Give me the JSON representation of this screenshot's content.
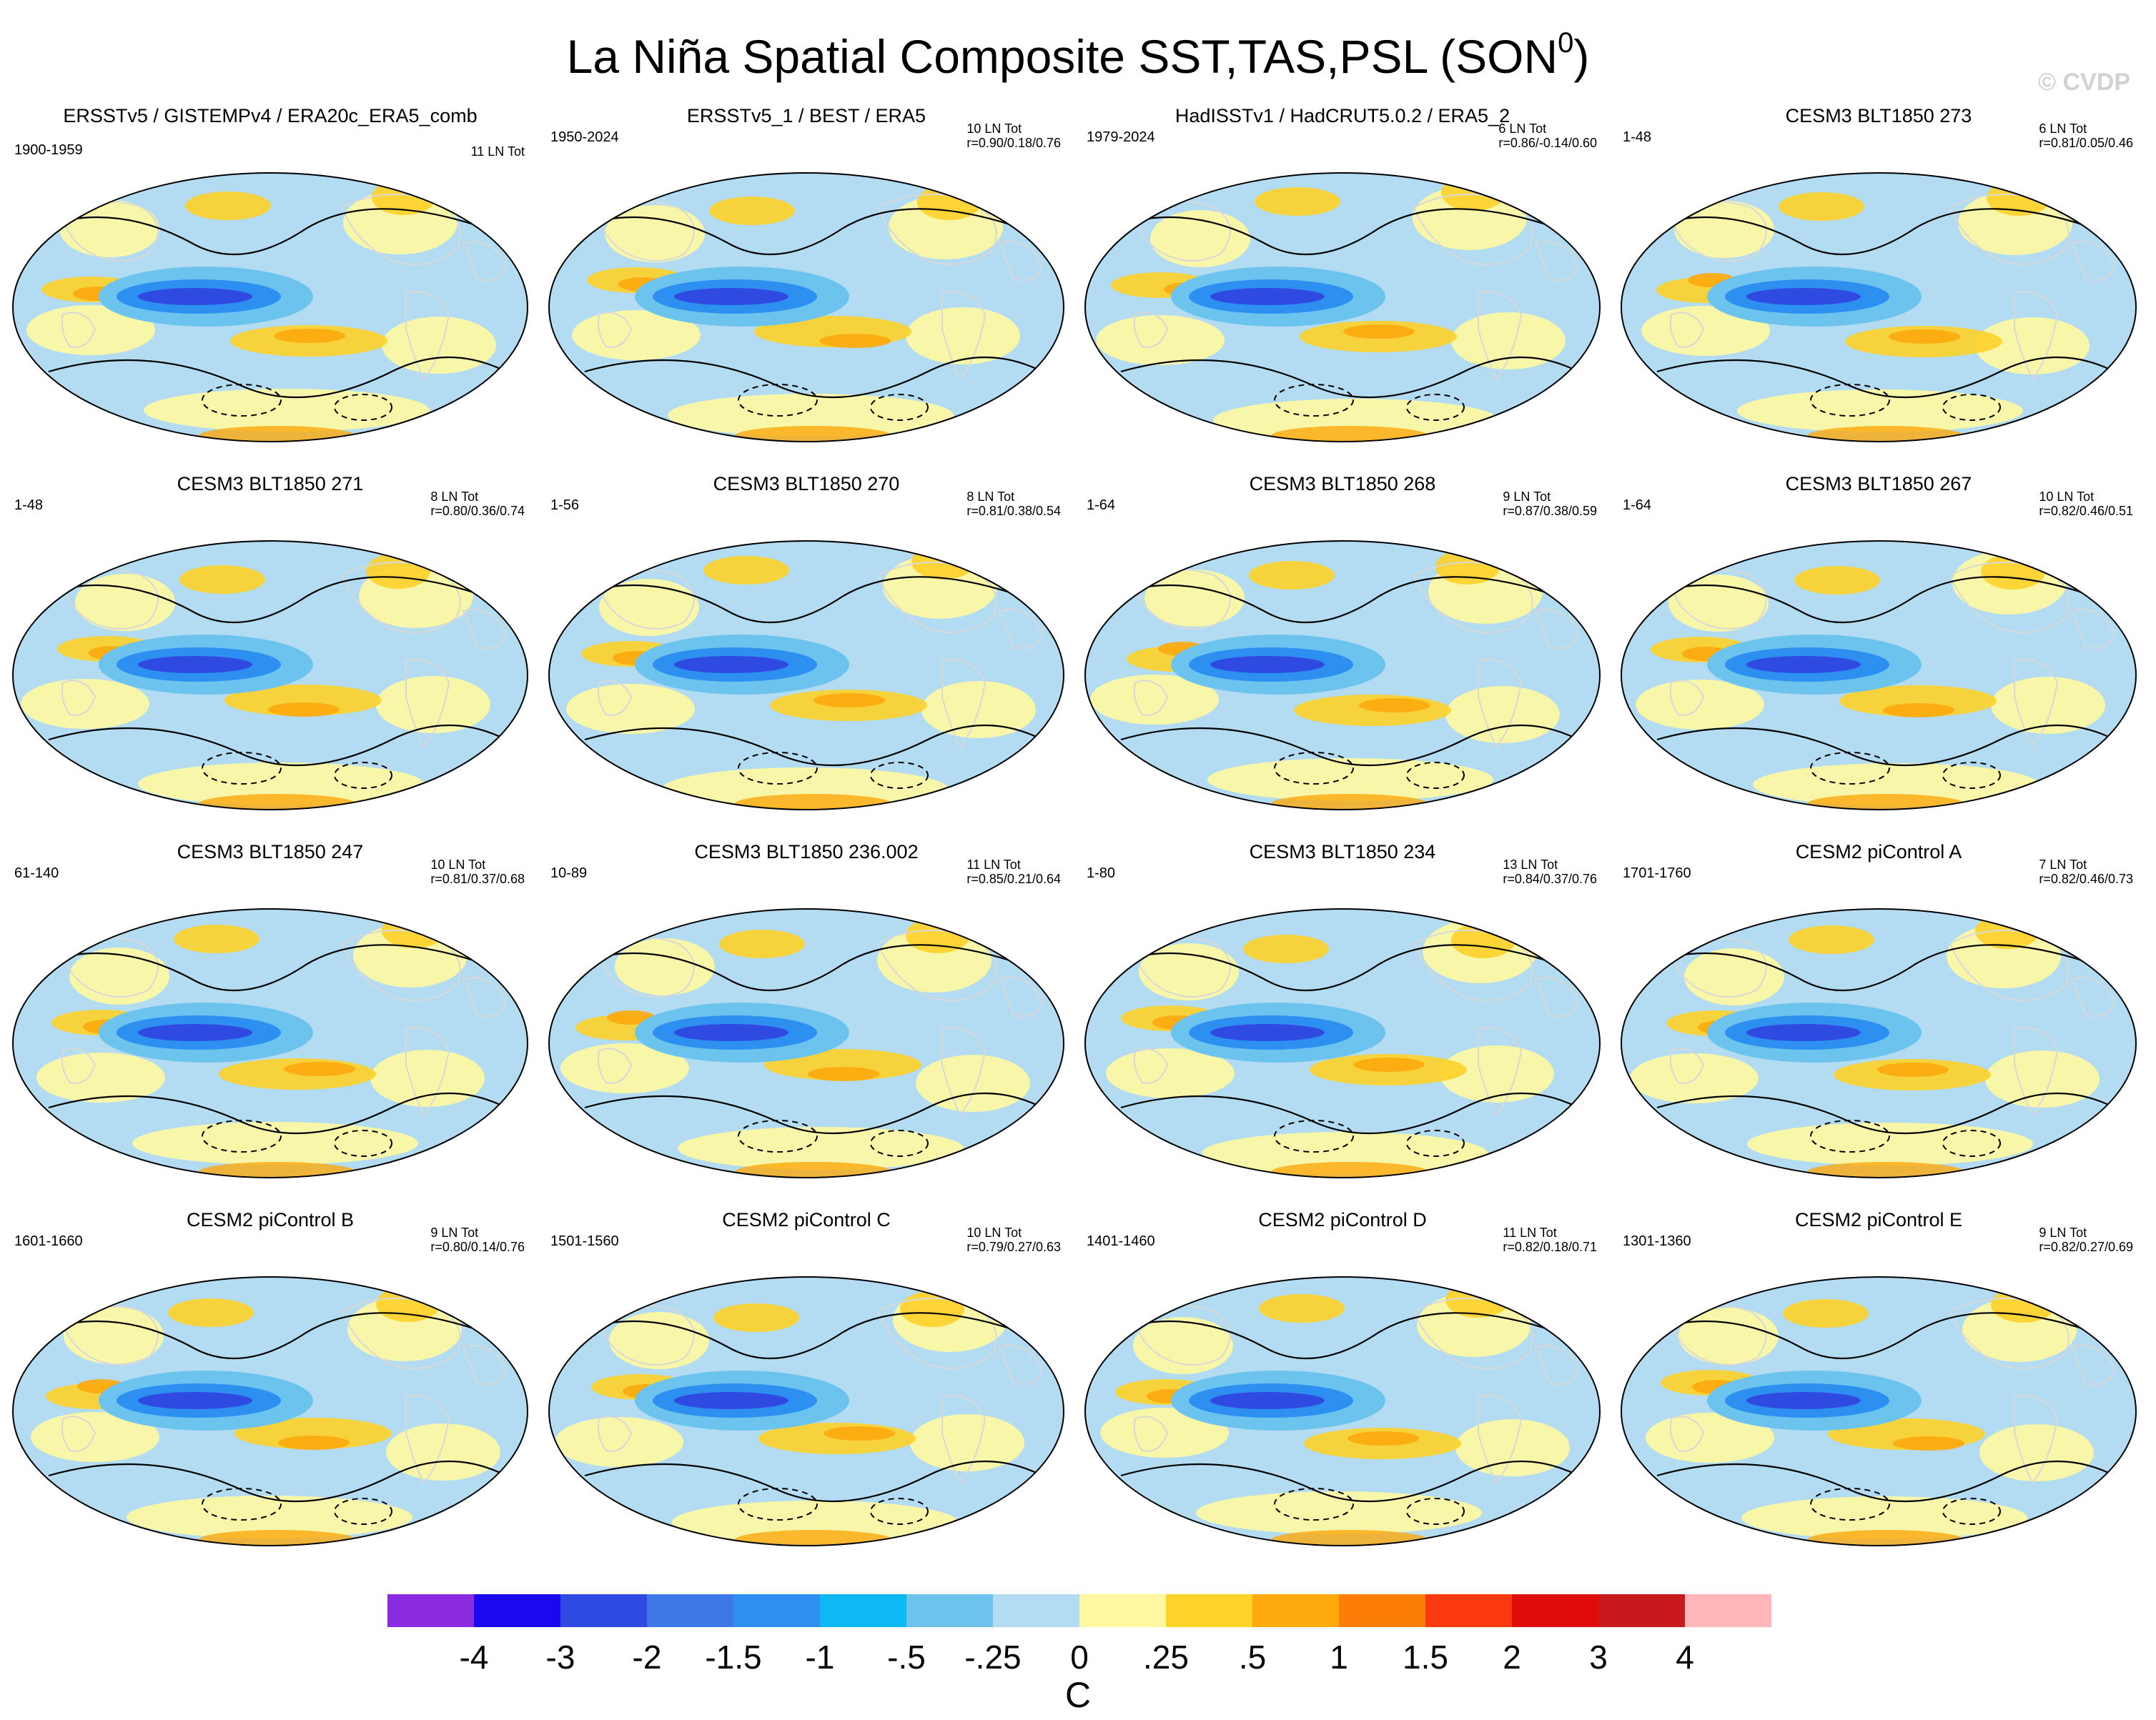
{
  "title": {
    "main": "La Niña Spatial Composite SST,TAS,PSL (SON",
    "superscript": "0",
    "close": ")"
  },
  "watermark": "© CVDP",
  "panels": [
    {
      "title": "ERSSTv5 / GISTEMPv4 / ERA20c_ERA5_comb",
      "years": "1900-1959",
      "count": "11 LN Tot",
      "corr": ""
    },
    {
      "title": "ERSSTv5_1 / BEST / ERA5",
      "years": "1950-2024",
      "count": "10 LN Tot",
      "corr": "r=0.90/0.18/0.76"
    },
    {
      "title": "HadISSTv1 / HadCRUT5.0.2 / ERA5_2",
      "years": "1979-2024",
      "count": "6 LN Tot",
      "corr": "r=0.86/-0.14/0.60"
    },
    {
      "title": "CESM3 BLT1850 273",
      "years": "1-48",
      "count": "6 LN Tot",
      "corr": "r=0.81/0.05/0.46"
    },
    {
      "title": "CESM3 BLT1850 271",
      "years": "1-48",
      "count": "8 LN Tot",
      "corr": "r=0.80/0.36/0.74"
    },
    {
      "title": "CESM3 BLT1850 270",
      "years": "1-56",
      "count": "8 LN Tot",
      "corr": "r=0.81/0.38/0.54"
    },
    {
      "title": "CESM3 BLT1850 268",
      "years": "1-64",
      "count": "9 LN Tot",
      "corr": "r=0.87/0.38/0.59"
    },
    {
      "title": "CESM3 BLT1850 267",
      "years": "1-64",
      "count": "10 LN Tot",
      "corr": "r=0.82/0.46/0.51"
    },
    {
      "title": "CESM3 BLT1850 247",
      "years": "61-140",
      "count": "10 LN Tot",
      "corr": "r=0.81/0.37/0.68"
    },
    {
      "title": "CESM3 BLT1850 236.002",
      "years": "10-89",
      "count": "11 LN Tot",
      "corr": "r=0.85/0.21/0.64"
    },
    {
      "title": "CESM3 BLT1850 234",
      "years": "1-80",
      "count": "13 LN Tot",
      "corr": "r=0.84/0.37/0.76"
    },
    {
      "title": "CESM2 piControl A",
      "years": "1701-1760",
      "count": "7 LN Tot",
      "corr": "r=0.82/0.46/0.73"
    },
    {
      "title": "CESM2 piControl B",
      "years": "1601-1660",
      "count": "9 LN Tot",
      "corr": "r=0.80/0.14/0.76"
    },
    {
      "title": "CESM2 piControl C",
      "years": "1501-1560",
      "count": "10 LN Tot",
      "corr": "r=0.79/0.27/0.63"
    },
    {
      "title": "CESM2 piControl D",
      "years": "1401-1460",
      "count": "11 LN Tot",
      "corr": "r=0.82/0.18/0.71"
    },
    {
      "title": "CESM2 piControl E",
      "years": "1301-1360",
      "count": "9 LN Tot",
      "corr": "r=0.82/0.27/0.69"
    }
  ],
  "colorbar": {
    "unit": "C",
    "labels": [
      "-4",
      "-3",
      "-2",
      "-1.5",
      "-1",
      "-.5",
      "-.25",
      "0",
      ".25",
      ".5",
      "1",
      "1.5",
      "2",
      "3",
      "4"
    ],
    "colors": [
      "#8a2be2",
      "#1a08f0",
      "#2e4ae0",
      "#3d78e6",
      "#2d8ff0",
      "#0eb8f2",
      "#6cc4ee",
      "#b3dcf2",
      "#fff8a0",
      "#fdd229",
      "#fda90c",
      "#fc7e08",
      "#fa3a0e",
      "#e00b0b",
      "#c81a1e",
      "#ffb6b8"
    ]
  }
}
